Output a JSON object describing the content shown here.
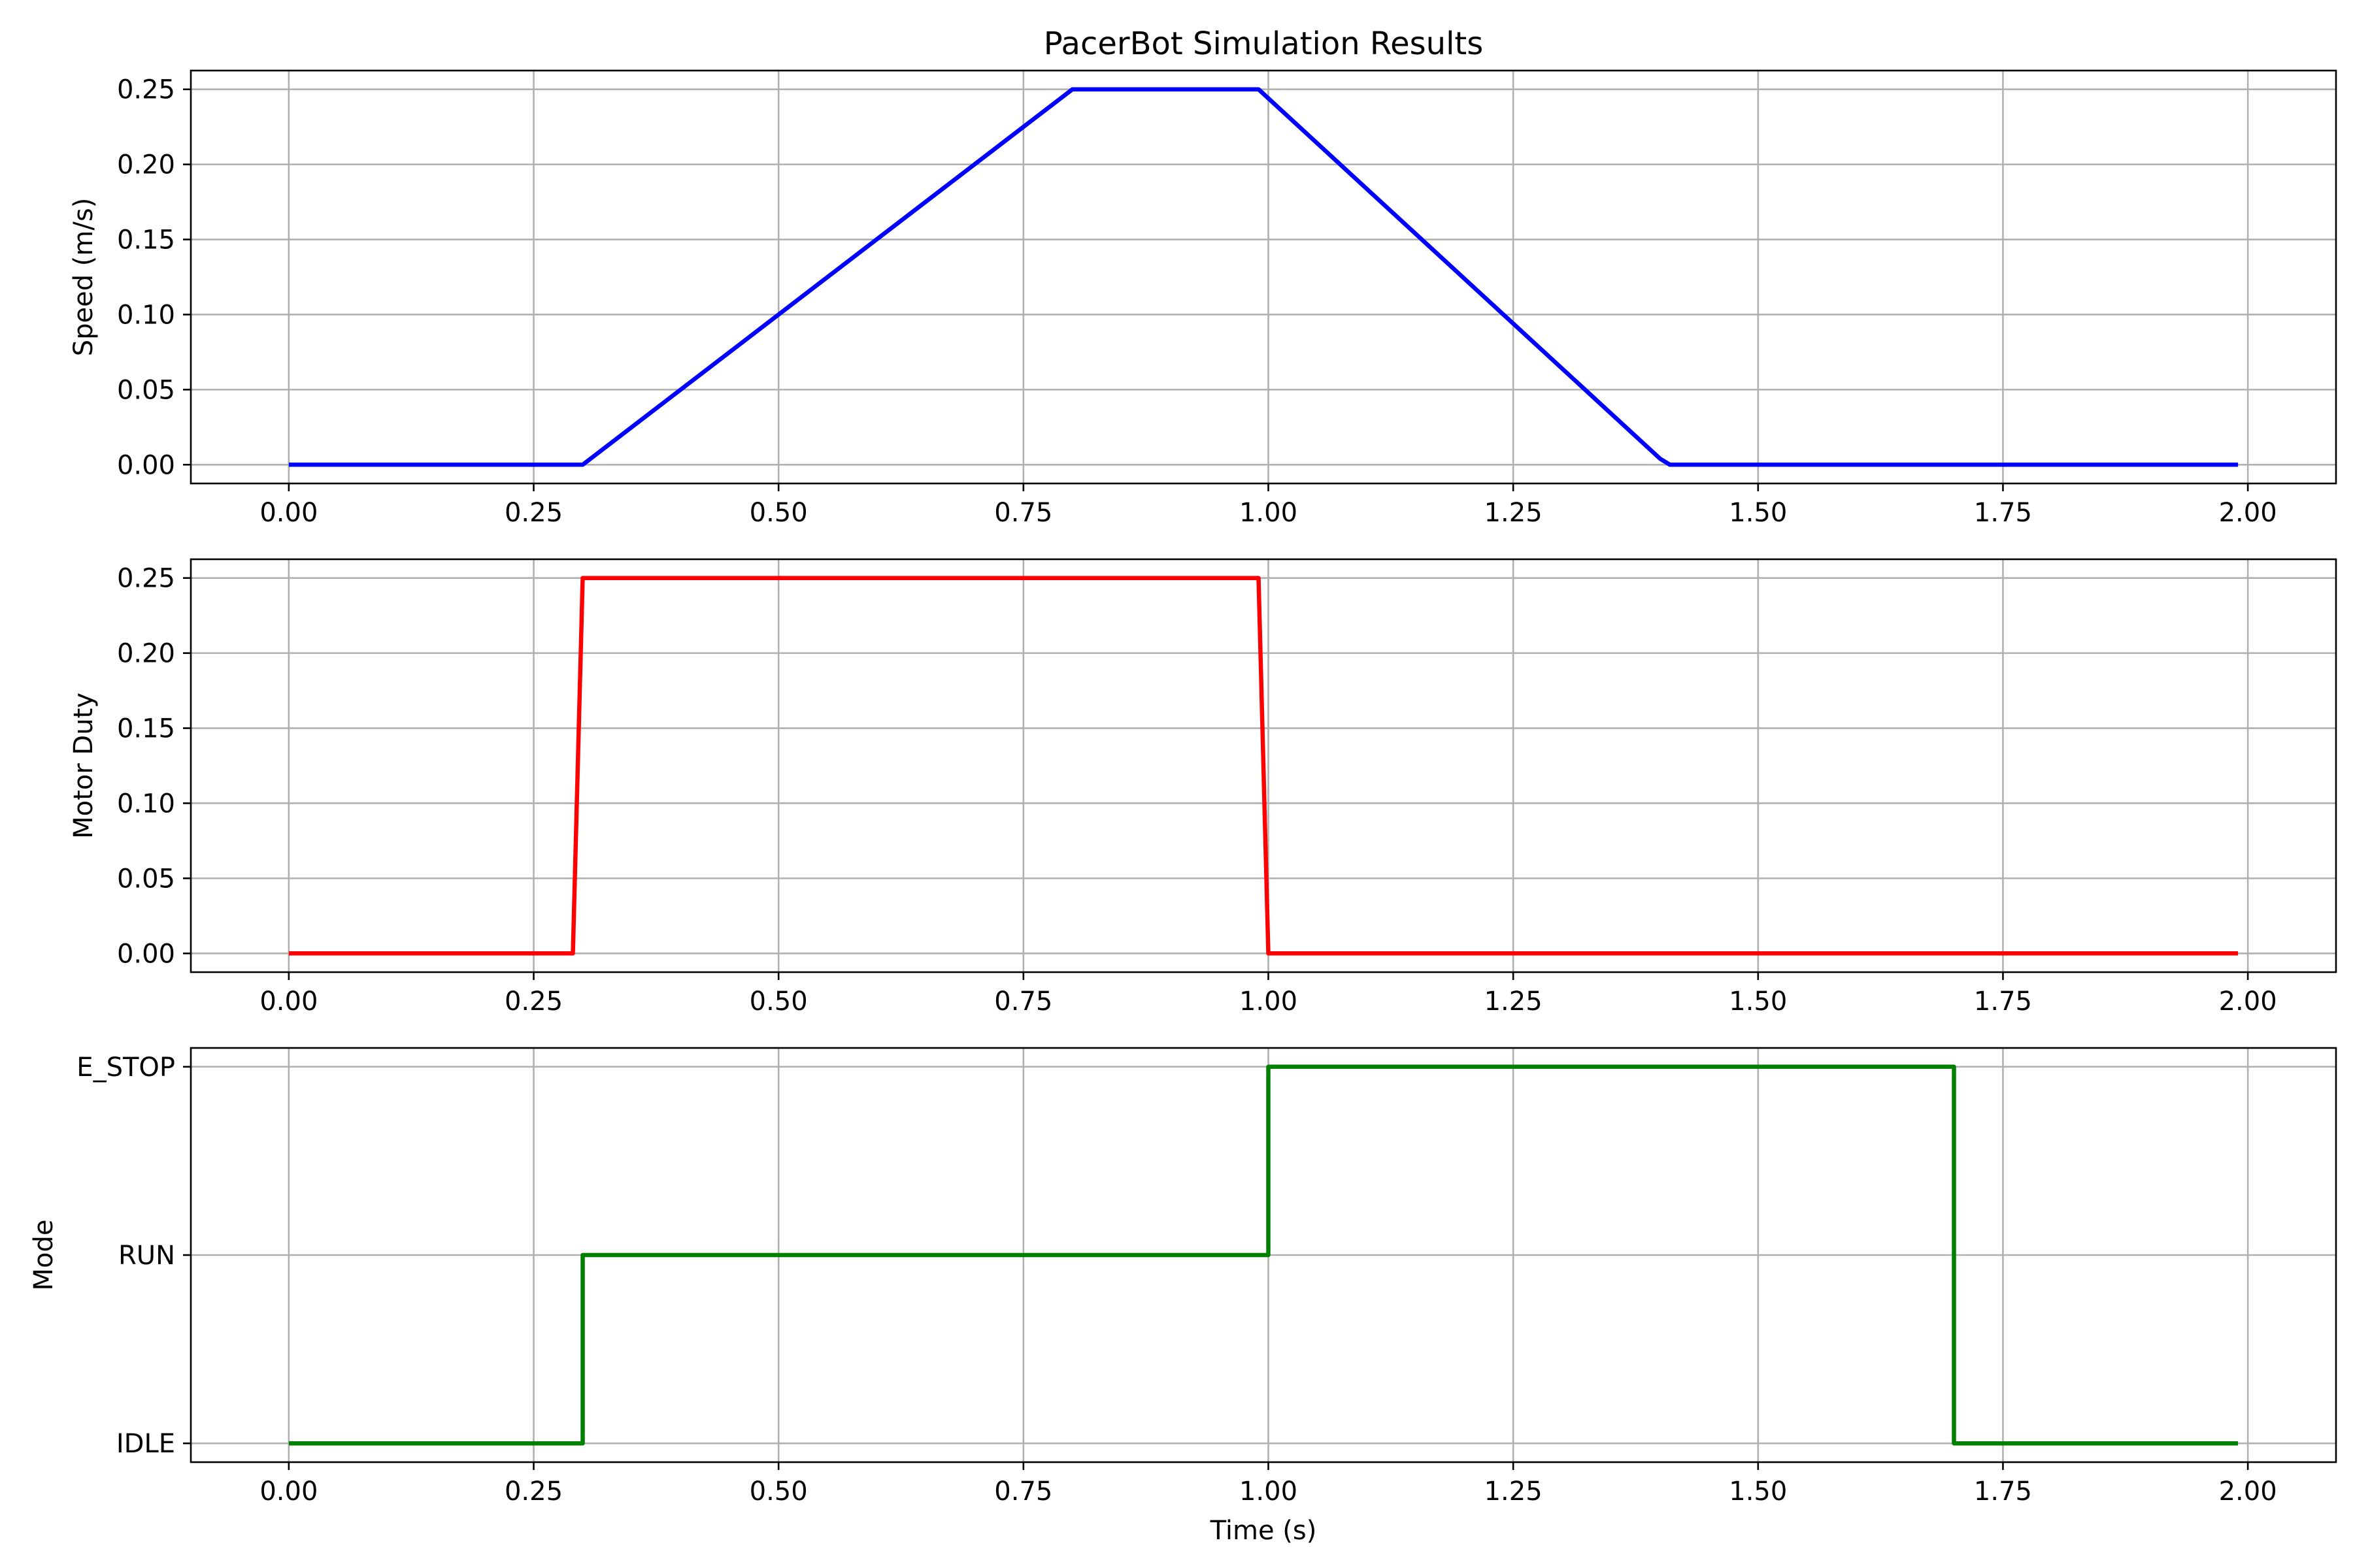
{
  "chart_data": [
    {
      "type": "line",
      "title": "PacerBot Simulation Results",
      "xlabel": "",
      "ylabel": "Speed (m/s)",
      "xlim": [
        -0.1,
        2.09
      ],
      "ylim": [
        -0.0125,
        0.2625
      ],
      "x_ticks": [
        "0.00",
        "0.25",
        "0.50",
        "0.75",
        "1.00",
        "1.25",
        "1.50",
        "1.75",
        "2.00"
      ],
      "y_ticks": [
        "0.00",
        "0.05",
        "0.10",
        "0.15",
        "0.20",
        "0.25"
      ],
      "grid": true,
      "series": [
        {
          "color": "#0000ff",
          "x": [
            0.0,
            0.3,
            0.8,
            0.99,
            1.4,
            1.41,
            1.99
          ],
          "y": [
            0.0,
            0.0,
            0.25,
            0.25,
            0.004,
            0.0,
            0.0
          ]
        }
      ]
    },
    {
      "type": "line",
      "title": "",
      "xlabel": "",
      "ylabel": "Motor Duty",
      "xlim": [
        -0.1,
        2.09
      ],
      "ylim": [
        -0.0125,
        0.2625
      ],
      "x_ticks": [
        "0.00",
        "0.25",
        "0.50",
        "0.75",
        "1.00",
        "1.25",
        "1.50",
        "1.75",
        "2.00"
      ],
      "y_ticks": [
        "0.00",
        "0.05",
        "0.10",
        "0.15",
        "0.20",
        "0.25"
      ],
      "grid": true,
      "series": [
        {
          "color": "#ff0000",
          "x": [
            0.0,
            0.29,
            0.3,
            0.99,
            1.0,
            1.99
          ],
          "y": [
            0.0,
            0.0,
            0.25,
            0.25,
            0.0,
            0.0
          ]
        }
      ]
    },
    {
      "type": "line",
      "title": "",
      "xlabel": "Time (s)",
      "ylabel": "Mode",
      "xlim": [
        -0.1,
        2.09
      ],
      "ylim": [
        -0.1,
        2.1
      ],
      "x_ticks": [
        "0.00",
        "0.25",
        "0.50",
        "0.75",
        "1.00",
        "1.25",
        "1.50",
        "1.75",
        "2.00"
      ],
      "y_ticks": [
        "IDLE",
        "RUN",
        "E_STOP"
      ],
      "grid": true,
      "series": [
        {
          "color": "#008000",
          "x": [
            0.0,
            0.3,
            0.3,
            1.0,
            1.0,
            1.7,
            1.7,
            1.99
          ],
          "y": [
            0,
            0,
            1,
            1,
            2,
            2,
            0,
            0
          ]
        }
      ]
    }
  ]
}
